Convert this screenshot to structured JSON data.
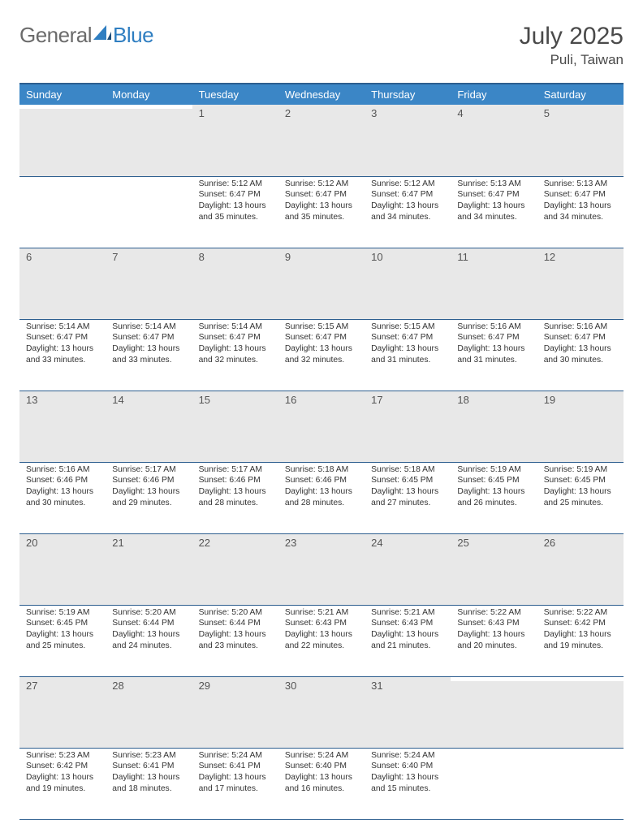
{
  "brand": {
    "part1": "General",
    "part2": "Blue"
  },
  "title": "July 2025",
  "location": "Puli, Taiwan",
  "colors": {
    "header_bg": "#3b86c6",
    "header_text": "#ffffff",
    "border": "#2d5e8f",
    "daynum_bg": "#e8e8e8",
    "logo_gray": "#6b6b6b",
    "logo_blue": "#2f7ec1",
    "text": "#333333"
  },
  "weekdays": [
    "Sunday",
    "Monday",
    "Tuesday",
    "Wednesday",
    "Thursday",
    "Friday",
    "Saturday"
  ],
  "weeks": [
    [
      null,
      null,
      {
        "n": "1",
        "sr": "Sunrise: 5:12 AM",
        "ss": "Sunset: 6:47 PM",
        "d1": "Daylight: 13 hours",
        "d2": "and 35 minutes."
      },
      {
        "n": "2",
        "sr": "Sunrise: 5:12 AM",
        "ss": "Sunset: 6:47 PM",
        "d1": "Daylight: 13 hours",
        "d2": "and 35 minutes."
      },
      {
        "n": "3",
        "sr": "Sunrise: 5:12 AM",
        "ss": "Sunset: 6:47 PM",
        "d1": "Daylight: 13 hours",
        "d2": "and 34 minutes."
      },
      {
        "n": "4",
        "sr": "Sunrise: 5:13 AM",
        "ss": "Sunset: 6:47 PM",
        "d1": "Daylight: 13 hours",
        "d2": "and 34 minutes."
      },
      {
        "n": "5",
        "sr": "Sunrise: 5:13 AM",
        "ss": "Sunset: 6:47 PM",
        "d1": "Daylight: 13 hours",
        "d2": "and 34 minutes."
      }
    ],
    [
      {
        "n": "6",
        "sr": "Sunrise: 5:14 AM",
        "ss": "Sunset: 6:47 PM",
        "d1": "Daylight: 13 hours",
        "d2": "and 33 minutes."
      },
      {
        "n": "7",
        "sr": "Sunrise: 5:14 AM",
        "ss": "Sunset: 6:47 PM",
        "d1": "Daylight: 13 hours",
        "d2": "and 33 minutes."
      },
      {
        "n": "8",
        "sr": "Sunrise: 5:14 AM",
        "ss": "Sunset: 6:47 PM",
        "d1": "Daylight: 13 hours",
        "d2": "and 32 minutes."
      },
      {
        "n": "9",
        "sr": "Sunrise: 5:15 AM",
        "ss": "Sunset: 6:47 PM",
        "d1": "Daylight: 13 hours",
        "d2": "and 32 minutes."
      },
      {
        "n": "10",
        "sr": "Sunrise: 5:15 AM",
        "ss": "Sunset: 6:47 PM",
        "d1": "Daylight: 13 hours",
        "d2": "and 31 minutes."
      },
      {
        "n": "11",
        "sr": "Sunrise: 5:16 AM",
        "ss": "Sunset: 6:47 PM",
        "d1": "Daylight: 13 hours",
        "d2": "and 31 minutes."
      },
      {
        "n": "12",
        "sr": "Sunrise: 5:16 AM",
        "ss": "Sunset: 6:47 PM",
        "d1": "Daylight: 13 hours",
        "d2": "and 30 minutes."
      }
    ],
    [
      {
        "n": "13",
        "sr": "Sunrise: 5:16 AM",
        "ss": "Sunset: 6:46 PM",
        "d1": "Daylight: 13 hours",
        "d2": "and 30 minutes."
      },
      {
        "n": "14",
        "sr": "Sunrise: 5:17 AM",
        "ss": "Sunset: 6:46 PM",
        "d1": "Daylight: 13 hours",
        "d2": "and 29 minutes."
      },
      {
        "n": "15",
        "sr": "Sunrise: 5:17 AM",
        "ss": "Sunset: 6:46 PM",
        "d1": "Daylight: 13 hours",
        "d2": "and 28 minutes."
      },
      {
        "n": "16",
        "sr": "Sunrise: 5:18 AM",
        "ss": "Sunset: 6:46 PM",
        "d1": "Daylight: 13 hours",
        "d2": "and 28 minutes."
      },
      {
        "n": "17",
        "sr": "Sunrise: 5:18 AM",
        "ss": "Sunset: 6:45 PM",
        "d1": "Daylight: 13 hours",
        "d2": "and 27 minutes."
      },
      {
        "n": "18",
        "sr": "Sunrise: 5:19 AM",
        "ss": "Sunset: 6:45 PM",
        "d1": "Daylight: 13 hours",
        "d2": "and 26 minutes."
      },
      {
        "n": "19",
        "sr": "Sunrise: 5:19 AM",
        "ss": "Sunset: 6:45 PM",
        "d1": "Daylight: 13 hours",
        "d2": "and 25 minutes."
      }
    ],
    [
      {
        "n": "20",
        "sr": "Sunrise: 5:19 AM",
        "ss": "Sunset: 6:45 PM",
        "d1": "Daylight: 13 hours",
        "d2": "and 25 minutes."
      },
      {
        "n": "21",
        "sr": "Sunrise: 5:20 AM",
        "ss": "Sunset: 6:44 PM",
        "d1": "Daylight: 13 hours",
        "d2": "and 24 minutes."
      },
      {
        "n": "22",
        "sr": "Sunrise: 5:20 AM",
        "ss": "Sunset: 6:44 PM",
        "d1": "Daylight: 13 hours",
        "d2": "and 23 minutes."
      },
      {
        "n": "23",
        "sr": "Sunrise: 5:21 AM",
        "ss": "Sunset: 6:43 PM",
        "d1": "Daylight: 13 hours",
        "d2": "and 22 minutes."
      },
      {
        "n": "24",
        "sr": "Sunrise: 5:21 AM",
        "ss": "Sunset: 6:43 PM",
        "d1": "Daylight: 13 hours",
        "d2": "and 21 minutes."
      },
      {
        "n": "25",
        "sr": "Sunrise: 5:22 AM",
        "ss": "Sunset: 6:43 PM",
        "d1": "Daylight: 13 hours",
        "d2": "and 20 minutes."
      },
      {
        "n": "26",
        "sr": "Sunrise: 5:22 AM",
        "ss": "Sunset: 6:42 PM",
        "d1": "Daylight: 13 hours",
        "d2": "and 19 minutes."
      }
    ],
    [
      {
        "n": "27",
        "sr": "Sunrise: 5:23 AM",
        "ss": "Sunset: 6:42 PM",
        "d1": "Daylight: 13 hours",
        "d2": "and 19 minutes."
      },
      {
        "n": "28",
        "sr": "Sunrise: 5:23 AM",
        "ss": "Sunset: 6:41 PM",
        "d1": "Daylight: 13 hours",
        "d2": "and 18 minutes."
      },
      {
        "n": "29",
        "sr": "Sunrise: 5:24 AM",
        "ss": "Sunset: 6:41 PM",
        "d1": "Daylight: 13 hours",
        "d2": "and 17 minutes."
      },
      {
        "n": "30",
        "sr": "Sunrise: 5:24 AM",
        "ss": "Sunset: 6:40 PM",
        "d1": "Daylight: 13 hours",
        "d2": "and 16 minutes."
      },
      {
        "n": "31",
        "sr": "Sunrise: 5:24 AM",
        "ss": "Sunset: 6:40 PM",
        "d1": "Daylight: 13 hours",
        "d2": "and 15 minutes."
      },
      null,
      null
    ]
  ]
}
